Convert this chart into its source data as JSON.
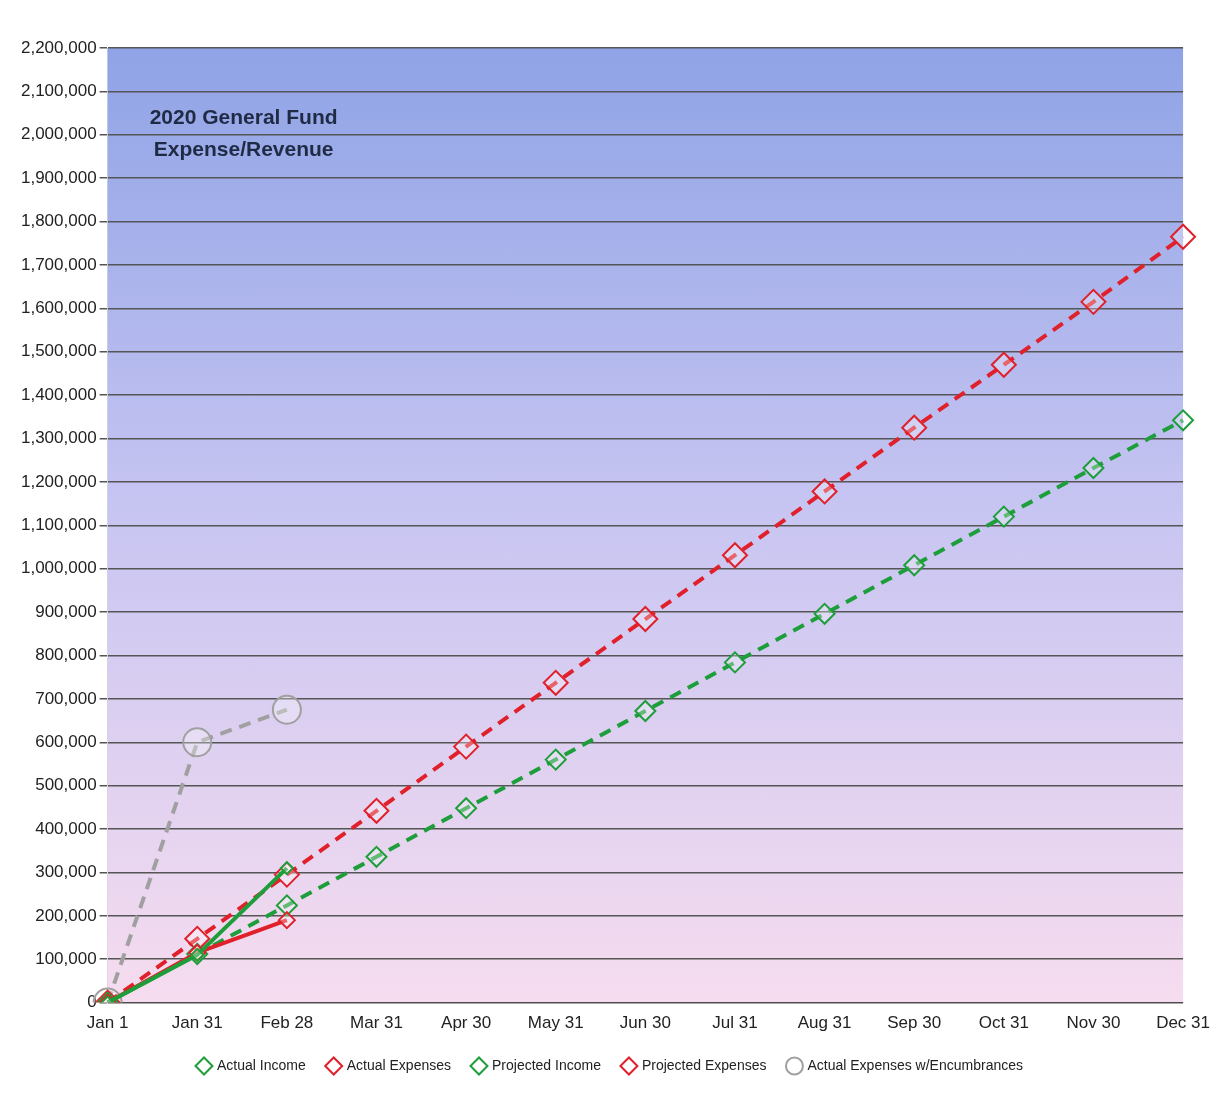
{
  "chart_data": {
    "type": "line",
    "title": "2020 General Fund\nExpense/Revenue",
    "categories": [
      "Jan 1",
      "Jan 31",
      "Feb 28",
      "Mar 31",
      "Apr 30",
      "May 31",
      "Jun 30",
      "Jul 31",
      "Aug 31",
      "Sep 30",
      "Oct 31",
      "Nov 30",
      "Dec 31"
    ],
    "series": [
      {
        "name": "Actual Income",
        "color": "#1e9e3a",
        "marker": "diamond",
        "line_style": "solid",
        "values": [
          0,
          110000,
          310000,
          null,
          null,
          null,
          null,
          null,
          null,
          null,
          null,
          null,
          null
        ]
      },
      {
        "name": "Actual Expenses",
        "color": "#e0202a",
        "marker": "diamond",
        "line_style": "solid",
        "values": [
          0,
          115000,
          190000,
          null,
          null,
          null,
          null,
          null,
          null,
          null,
          null,
          null,
          null
        ]
      },
      {
        "name": "Projected Income",
        "color": "#1e9e3a",
        "marker": "diamond",
        "line_style": "dashed",
        "values": [
          0,
          112000,
          224000,
          336000,
          448000,
          560000,
          672000,
          784000,
          896000,
          1008000,
          1120000,
          1232000,
          1342000
        ]
      },
      {
        "name": "Projected Expenses",
        "color": "#e0202a",
        "marker": "diamond",
        "line_style": "dashed",
        "values": [
          0,
          147000,
          295000,
          442000,
          590000,
          737000,
          884000,
          1031000,
          1178000,
          1325000,
          1470000,
          1615000,
          1765000
        ]
      },
      {
        "name": "Actual Expenses w/Encumbrances",
        "color": "#a0a0a0",
        "marker": "circle",
        "line_style": "dashed",
        "values": [
          0,
          600000,
          675000,
          null,
          null,
          null,
          null,
          null,
          null,
          null,
          null,
          null,
          null
        ]
      }
    ],
    "ylim": [
      0,
      2200000
    ],
    "yticks": [
      0,
      {
        "value": 100000,
        "label": "100,000"
      },
      {
        "value": 200000,
        "label": "200,000"
      },
      {
        "value": 300000,
        "label": "300,000"
      },
      {
        "value": 400000,
        "label": "400,000"
      },
      {
        "value": 500000,
        "label": "500,000"
      },
      {
        "value": 600000,
        "label": "600,000"
      },
      {
        "value": 700000,
        "label": "700,000"
      },
      {
        "value": 800000,
        "label": "800,000"
      },
      {
        "value": 900000,
        "label": "900,000"
      },
      {
        "value": 1000000,
        "label": "1,000,000"
      },
      {
        "value": 1100000,
        "label": "1,100,000"
      },
      {
        "value": 1200000,
        "label": "1,200,000"
      },
      {
        "value": 1300000,
        "label": "1,300,000"
      },
      {
        "value": 1400000,
        "label": "1,400,000"
      },
      {
        "value": 1500000,
        "label": "1,500,000"
      },
      {
        "value": 1600000,
        "label": "1,600,000"
      },
      {
        "value": 1700000,
        "label": "1,700,000"
      },
      {
        "value": 1800000,
        "label": "1,800,000"
      },
      {
        "value": 1900000,
        "label": "1,900,000"
      },
      {
        "value": 2000000,
        "label": "2,000,000"
      },
      {
        "value": 2100000,
        "label": "2,100,000"
      },
      {
        "value": 2200000,
        "label": "2,200,000"
      }
    ],
    "grid": "y",
    "legend": "bottom"
  }
}
